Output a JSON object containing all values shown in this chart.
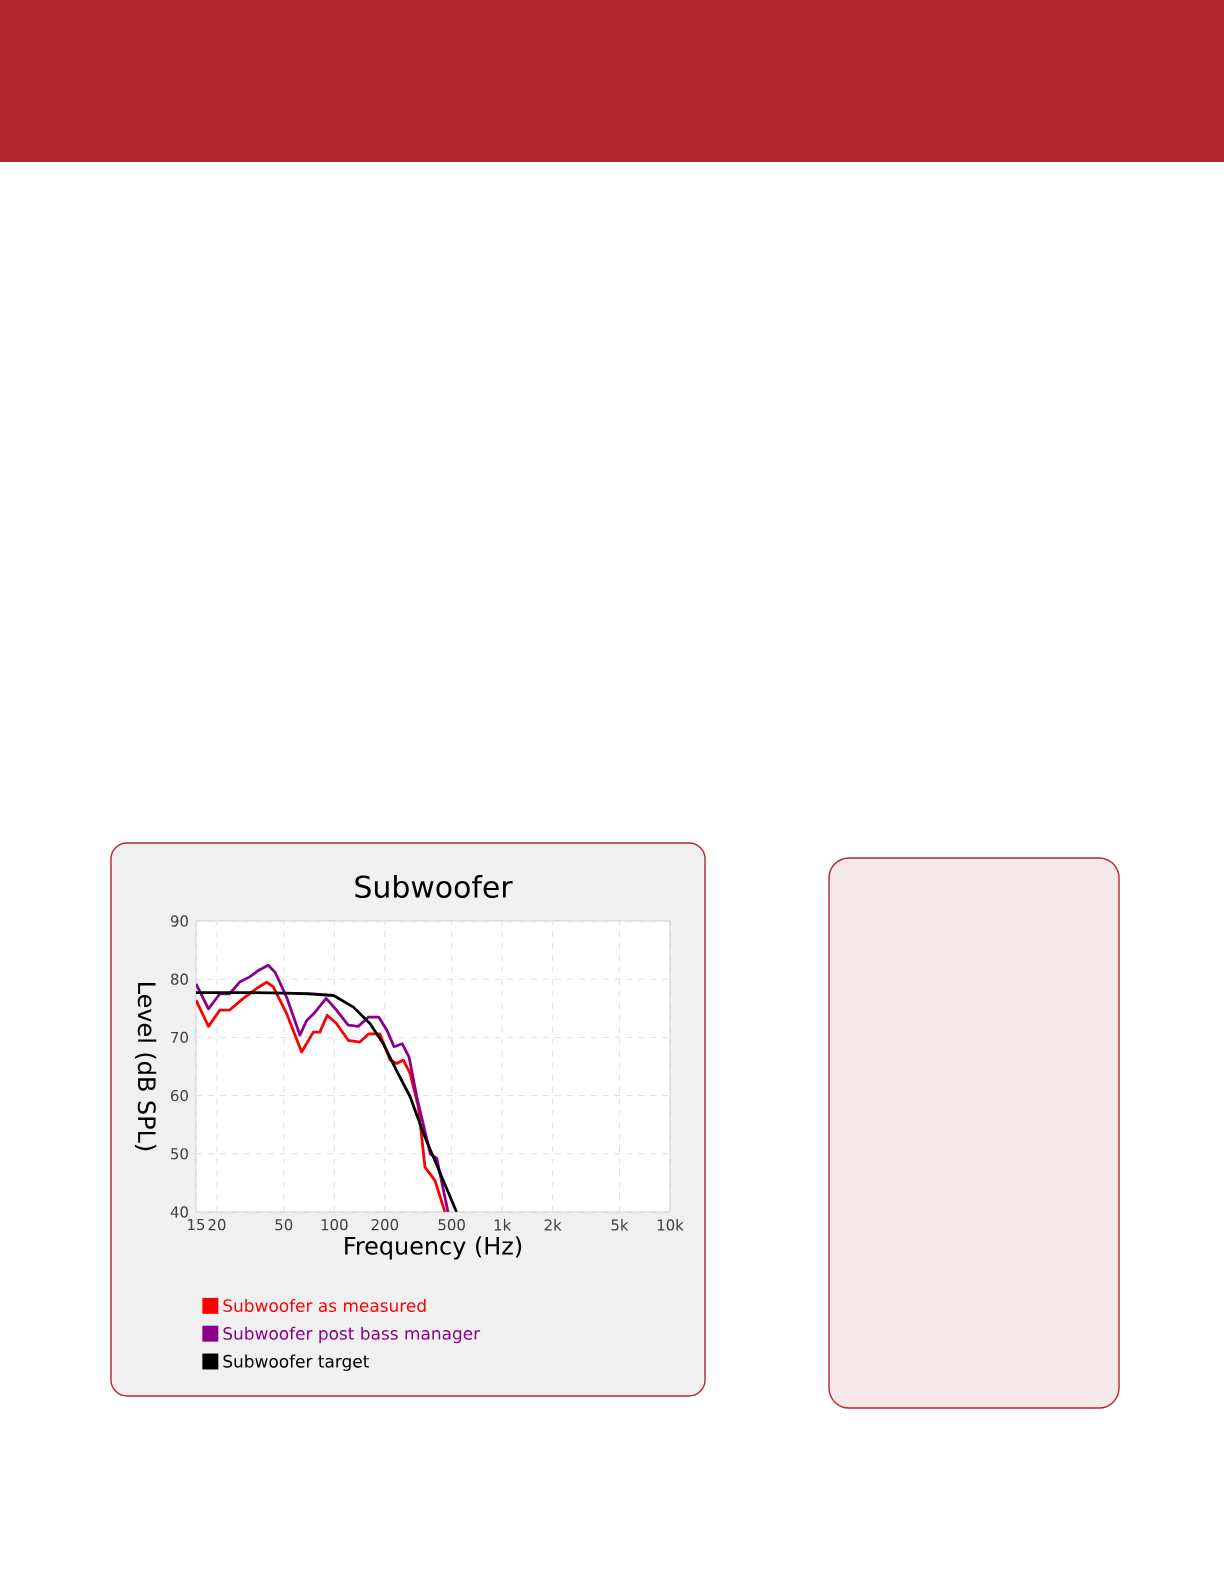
{
  "chart_data": {
    "type": "line",
    "title": "Subwoofer",
    "xlabel": "Frequency (Hz)",
    "ylabel": "Level (dB SPL)",
    "log": "x",
    "grid": true,
    "legend": "bottom",
    "line_style": "solid",
    "xlim": [
      15,
      10000
    ],
    "ylim": [
      40,
      90
    ],
    "xticks": [
      15,
      20,
      50,
      100,
      200,
      500,
      {
        "value": 1000,
        "label": "1k"
      },
      {
        "value": 2000,
        "label": "2k"
      },
      {
        "value": 5000,
        "label": "5k"
      },
      {
        "value": 10000,
        "label": "10k"
      }
    ],
    "yticks": [
      40,
      50,
      60,
      70,
      80,
      90
    ],
    "series": [
      {
        "name": "Subwoofer as measured",
        "color": "#ff0000",
        "x": [
          15,
          17.8,
          20.8,
          23.8,
          28.7,
          34.4,
          39.6,
          43.3,
          52,
          63.9,
          75,
          82,
          90.7,
          103,
          121,
          142,
          160,
          187,
          215,
          235,
          258,
          283,
          317,
          347,
          398,
          456
        ],
        "values": [
          76.4,
          71.9,
          74.7,
          74.7,
          76.7,
          78.4,
          79.5,
          78.7,
          74.1,
          67.5,
          70.9,
          70.9,
          73.8,
          72.4,
          69.5,
          69.2,
          70.6,
          70.6,
          66.1,
          65.5,
          66.1,
          63.8,
          58.0,
          47.7,
          45.4,
          40.0
        ]
      },
      {
        "name": "Subwoofer post bass manager",
        "color": "#8b008b",
        "x": [
          15,
          17.8,
          20.8,
          23.8,
          27.3,
          31.3,
          35.3,
          40.4,
          44.4,
          52,
          62.4,
          68.5,
          75.5,
          89.4,
          103,
          121,
          139,
          160,
          184,
          206,
          227,
          254,
          279,
          310,
          373,
          408,
          476
        ],
        "values": [
          79.2,
          74.9,
          77.5,
          77.5,
          79.5,
          80.4,
          81.5,
          82.4,
          81.2,
          76.9,
          70.4,
          72.9,
          74.1,
          76.7,
          74.7,
          72.1,
          71.9,
          73.5,
          73.5,
          71.2,
          68.4,
          68.9,
          66.6,
          59.8,
          50.0,
          49.2,
          40.0
        ]
      },
      {
        "name": "Subwoofer target",
        "color": "#000000",
        "x": [
          15,
          30,
          50,
          70,
          99,
          130,
          163,
          196,
          235,
          283,
          340,
          428,
          535
        ],
        "values": [
          77.7,
          77.7,
          77.6,
          77.5,
          77.2,
          75.2,
          72.4,
          68.9,
          64.3,
          59.8,
          53.5,
          46.6,
          40.0
        ]
      }
    ]
  }
}
